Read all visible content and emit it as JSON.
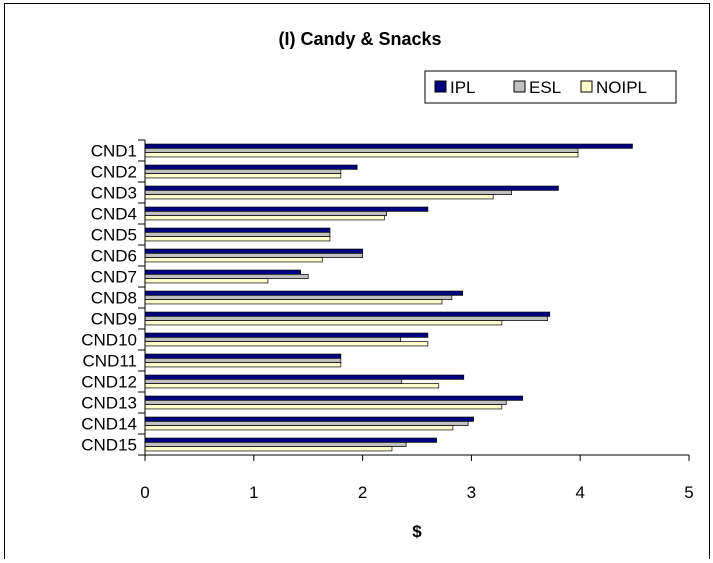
{
  "chart_data": {
    "type": "bar",
    "orientation": "horizontal",
    "title": "(I) Candy & Snacks",
    "xlabel": "$",
    "ylabel": "",
    "xlim": [
      0,
      5
    ],
    "xticks": [
      0,
      1,
      2,
      3,
      4,
      5
    ],
    "grid": false,
    "legend": "top-right",
    "categories": [
      "CND1",
      "CND2",
      "CND3",
      "CND4",
      "CND5",
      "CND6",
      "CND7",
      "CND8",
      "CND9",
      "CND10",
      "CND11",
      "CND12",
      "CND13",
      "CND14",
      "CND15"
    ],
    "series": [
      {
        "name": "IPL",
        "color": "#000080",
        "values": [
          4.48,
          1.95,
          3.8,
          2.6,
          1.7,
          2.0,
          1.43,
          2.92,
          3.72,
          2.6,
          1.8,
          2.93,
          3.47,
          3.02,
          2.68
        ]
      },
      {
        "name": "ESL",
        "color": "#c0c0c0",
        "values": [
          3.98,
          1.8,
          3.37,
          2.22,
          1.7,
          2.0,
          1.5,
          2.82,
          3.7,
          2.35,
          1.8,
          2.36,
          3.32,
          2.97,
          2.4
        ]
      },
      {
        "name": "NOIPL",
        "color": "#ffffcc",
        "values": [
          3.98,
          1.8,
          3.2,
          2.2,
          1.7,
          1.63,
          1.13,
          2.73,
          3.28,
          2.6,
          1.8,
          2.7,
          3.28,
          2.83,
          2.27
        ]
      }
    ]
  }
}
